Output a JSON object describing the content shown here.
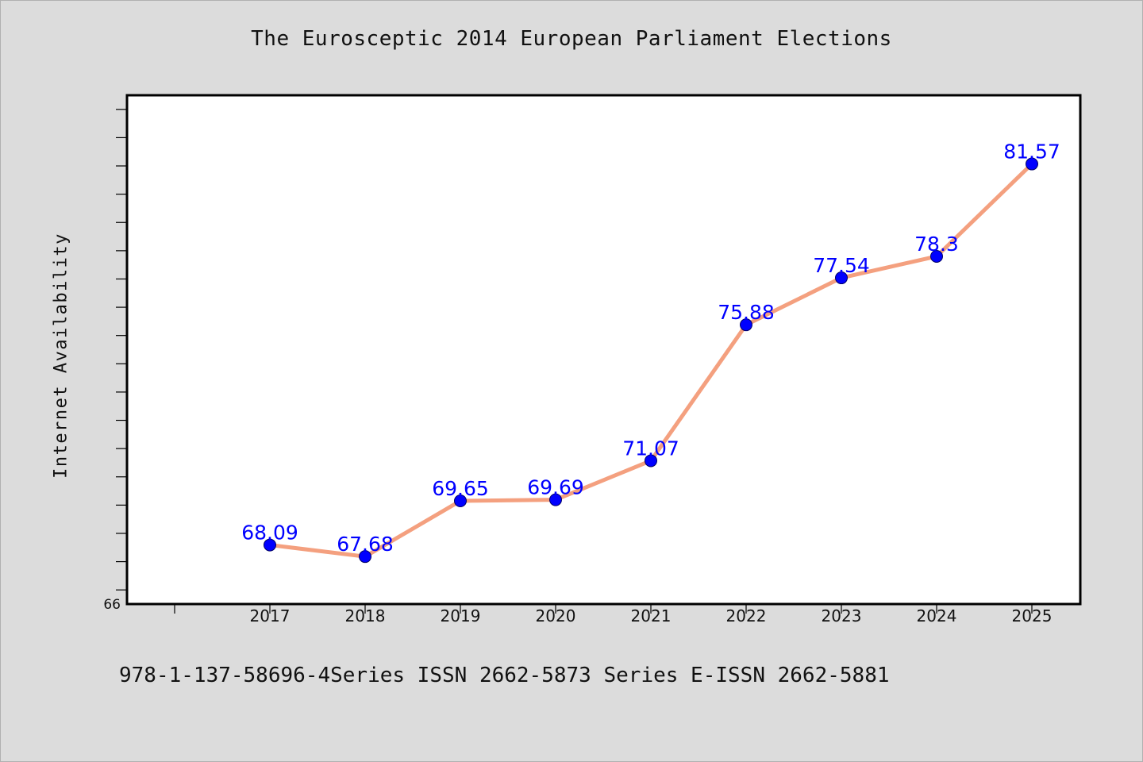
{
  "title": "The Eurosceptic 2014 European Parliament Elections",
  "footer": "978-1-137-58696-4Series ISSN 2662-5873 Series E-ISSN 2662-5881",
  "chart_data": {
    "type": "line",
    "title": "The Eurosceptic 2014 European Parliament Elections",
    "xlabel": "",
    "ylabel": "Internet Availability",
    "categories": [
      "2017",
      "2018",
      "2019",
      "2020",
      "2021",
      "2022",
      "2023",
      "2024",
      "2025"
    ],
    "series": [
      {
        "values": [
          68.09,
          67.68,
          69.65,
          69.69,
          71.07,
          75.88,
          77.54,
          78.3,
          81.57
        ],
        "data_labels": [
          "68.09",
          "67.68",
          "69.65",
          "69.69",
          "71.07",
          "75.88",
          "77.54",
          "78.3",
          "81.57"
        ],
        "line_color": "#f4a07f",
        "marker_color": "#0000ff"
      }
    ],
    "ylim": [
      66,
      84
    ],
    "y_tick_labels": [
      "66"
    ],
    "grid": false,
    "legend": "none"
  }
}
